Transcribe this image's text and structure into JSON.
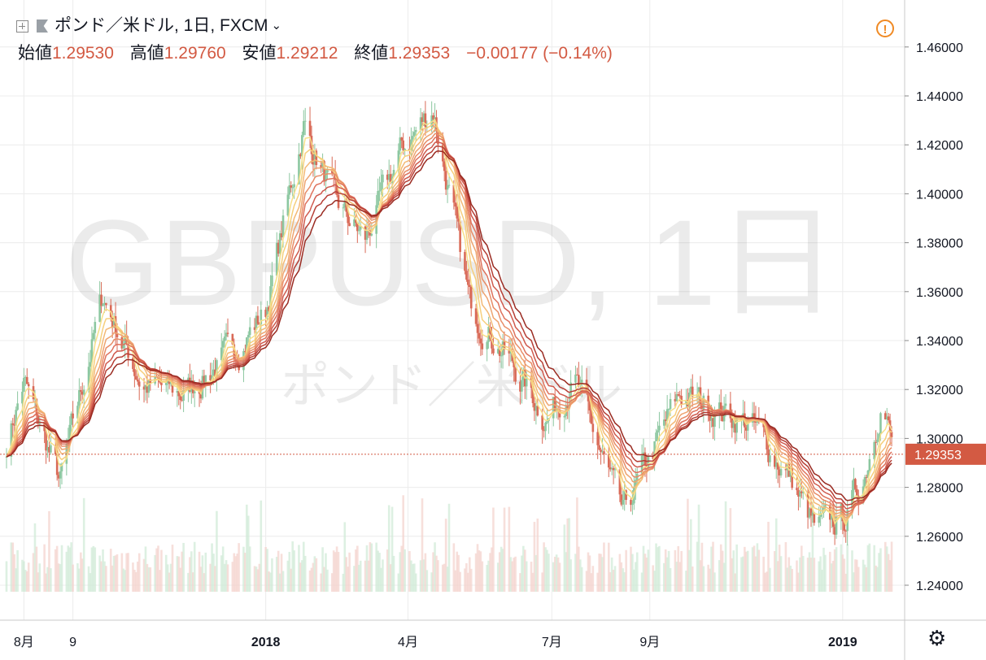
{
  "header": {
    "symbol_title": "ポンド／米ドル, 1日, FXCM",
    "chevron": "⌄",
    "add_icon": "plus-square-icon",
    "flag_icon": "flag-icon",
    "warning_icon": "!"
  },
  "ohlc": {
    "open_label": "始値",
    "open": "1.29530",
    "high_label": "高値",
    "high": "1.29760",
    "low_label": "安値",
    "low": "1.29212",
    "close_label": "終値",
    "close": "1.29353",
    "change": "−0.00177 (−0.14%)"
  },
  "watermark": {
    "line1": "GBPUSD, 1日",
    "line2": "ポンド／米ドル"
  },
  "settings_icon": "gear-icon",
  "colors": {
    "up": "#8cc7a0",
    "down": "#d96a57",
    "price_label_bg": "#d35a43",
    "ribbon": [
      "#f7e08a",
      "#f6cf7c",
      "#f3b976",
      "#eea470",
      "#e88c67",
      "#de725d",
      "#cf5a4e",
      "#b63f36",
      "#9a2b22"
    ]
  },
  "chart_data": {
    "type": "candlestick",
    "ylim": [
      1.225,
      1.47
    ],
    "y_ticks": [
      "1.46000",
      "1.44000",
      "1.42000",
      "1.40000",
      "1.38000",
      "1.36000",
      "1.34000",
      "1.32000",
      "1.30000",
      "1.28000",
      "1.26000",
      "1.24000"
    ],
    "x_ticks": [
      {
        "label": "8月",
        "date": "2017-08-01"
      },
      {
        "label": "9",
        "date": "2017-09-01"
      },
      {
        "label": "2018",
        "date": "2018-01-01"
      },
      {
        "label": "4月",
        "date": "2018-04-01"
      },
      {
        "label": "7月",
        "date": "2018-07-01"
      },
      {
        "label": "9月",
        "date": "2018-09-01"
      },
      {
        "label": "2019",
        "date": "2019-01-01"
      }
    ],
    "x_start": "2017-07-21",
    "x_end": "2019-02-02",
    "last_price": "1.29353",
    "series": [
      {
        "date": "2017-07-21",
        "close": 1.298
      },
      {
        "date": "2017-08-01",
        "close": 1.323
      },
      {
        "date": "2017-08-24",
        "close": 1.282
      },
      {
        "date": "2017-09-20",
        "close": 1.358
      },
      {
        "date": "2017-10-15",
        "close": 1.322
      },
      {
        "date": "2017-11-10",
        "close": 1.318
      },
      {
        "date": "2017-12-15",
        "close": 1.338
      },
      {
        "date": "2018-01-01",
        "close": 1.352
      },
      {
        "date": "2018-01-25",
        "close": 1.428
      },
      {
        "date": "2018-02-15",
        "close": 1.395
      },
      {
        "date": "2018-03-05",
        "close": 1.381
      },
      {
        "date": "2018-03-28",
        "close": 1.418
      },
      {
        "date": "2018-04-17",
        "close": 1.435
      },
      {
        "date": "2018-05-10",
        "close": 1.355
      },
      {
        "date": "2018-06-01",
        "close": 1.335
      },
      {
        "date": "2018-06-28",
        "close": 1.308
      },
      {
        "date": "2018-07-15",
        "close": 1.325
      },
      {
        "date": "2018-08-15",
        "close": 1.268
      },
      {
        "date": "2018-09-01",
        "close": 1.292
      },
      {
        "date": "2018-09-20",
        "close": 1.318
      },
      {
        "date": "2018-10-15",
        "close": 1.312
      },
      {
        "date": "2018-11-05",
        "close": 1.305
      },
      {
        "date": "2018-11-28",
        "close": 1.285
      },
      {
        "date": "2018-12-15",
        "close": 1.262
      },
      {
        "date": "2019-01-03",
        "close": 1.268
      },
      {
        "date": "2019-01-15",
        "close": 1.286
      },
      {
        "date": "2019-01-26",
        "close": 1.318
      },
      {
        "date": "2019-02-02",
        "close": 1.2935
      }
    ]
  }
}
